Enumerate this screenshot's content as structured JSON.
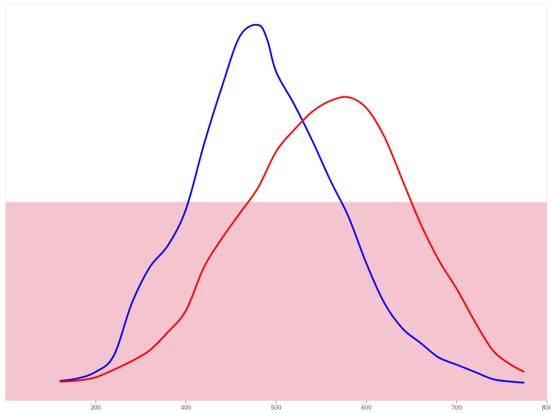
{
  "chart_data": {
    "type": "line",
    "title": "",
    "xlabel": "",
    "ylabel": "",
    "xlim": [
      200,
      800
    ],
    "ylim": [
      0,
      1
    ],
    "x_ticks": [
      300,
      400,
      500,
      600,
      700,
      800
    ],
    "y_ticks_shown": false,
    "grid": false,
    "legend": "none",
    "shaded_band": {
      "y_from": 0,
      "y_to": 0.5,
      "color": "#f4c4cf"
    },
    "series": [
      {
        "color": "#0000ff",
        "x": [
          260,
          280,
          300,
          320,
          340,
          360,
          380,
          400,
          420,
          440,
          460,
          480,
          490,
          500,
          520,
          540,
          560,
          580,
          600,
          620,
          640,
          660,
          680,
          700,
          720,
          740,
          760,
          775
        ],
        "y": [
          0.005,
          0.012,
          0.03,
          0.075,
          0.22,
          0.32,
          0.38,
          0.48,
          0.66,
          0.82,
          0.96,
          0.99,
          0.95,
          0.86,
          0.77,
          0.67,
          0.56,
          0.46,
          0.33,
          0.22,
          0.15,
          0.11,
          0.07,
          0.05,
          0.03,
          0.01,
          0.003,
          0.0
        ]
      },
      {
        "color": "#ff0000",
        "x": [
          260,
          280,
          300,
          320,
          340,
          360,
          380,
          400,
          420,
          440,
          460,
          480,
          500,
          520,
          540,
          560,
          580,
          600,
          620,
          640,
          660,
          680,
          700,
          720,
          740,
          760,
          775
        ],
        "y": [
          0.003,
          0.006,
          0.015,
          0.036,
          0.06,
          0.09,
          0.14,
          0.2,
          0.32,
          0.4,
          0.47,
          0.54,
          0.64,
          0.7,
          0.75,
          0.78,
          0.79,
          0.76,
          0.68,
          0.56,
          0.44,
          0.34,
          0.26,
          0.17,
          0.09,
          0.05,
          0.03
        ]
      }
    ]
  }
}
